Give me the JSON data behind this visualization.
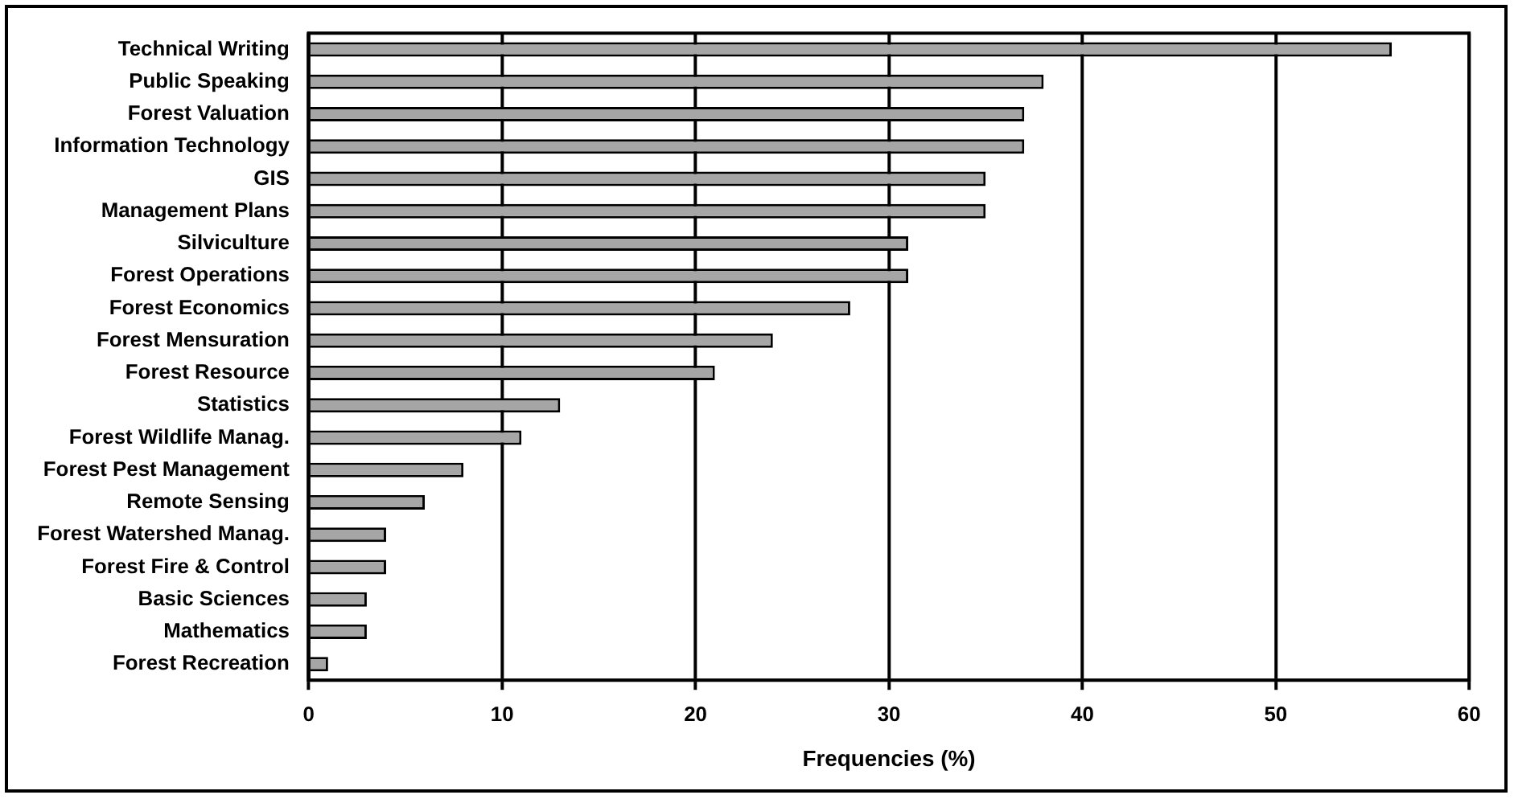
{
  "chart_data": {
    "type": "bar",
    "orientation": "horizontal",
    "xlabel": "Frequencies (%)",
    "categories": [
      "Technical Writing",
      "Public Speaking",
      "Forest Valuation",
      "Information Technology",
      "GIS",
      "Management Plans",
      "Silviculture",
      "Forest Operations",
      "Forest Economics",
      "Forest Mensuration",
      "Forest Resource",
      "Statistics",
      "Forest Wildlife Manag.",
      "Forest Pest Management",
      "Remote Sensing",
      "Forest Watershed Manag.",
      "Forest Fire & Control",
      "Basic Sciences",
      "Mathematics",
      "Forest Recreation"
    ],
    "values": [
      56,
      38,
      37,
      37,
      35,
      35,
      31,
      31,
      28,
      24,
      21,
      13,
      11,
      8,
      6,
      4,
      4,
      3,
      3,
      1
    ],
    "color": "#a6a6a6",
    "xlim": [
      0,
      60
    ],
    "xticks": [
      0,
      10,
      20,
      30,
      40,
      50,
      60
    ],
    "grid": "x",
    "legend": false
  }
}
